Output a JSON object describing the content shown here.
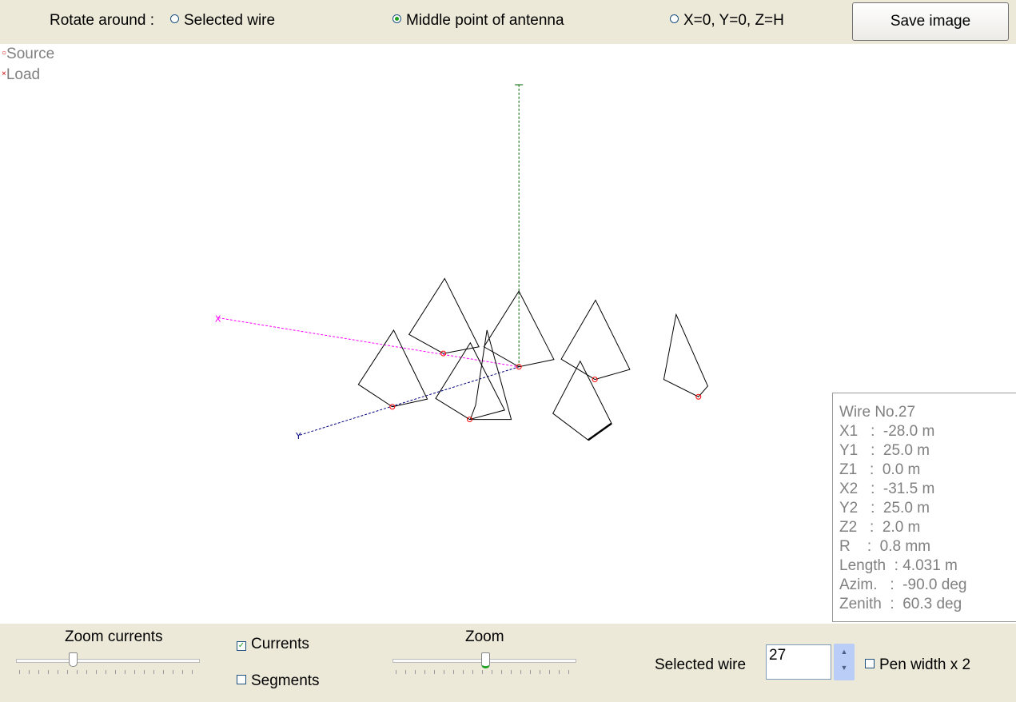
{
  "top": {
    "rotate_label": "Rotate around :",
    "options": [
      "Selected wire",
      "Middle point of antenna",
      "X=0, Y=0, Z=H"
    ],
    "selected_option": 1,
    "save_button": "Save image"
  },
  "legend": {
    "source_marker": "○",
    "source": "Source",
    "load_marker": "×",
    "load": "Load"
  },
  "axes": {
    "x": "X",
    "y": "Y",
    "colors": {
      "x": "#ff00ff",
      "y": "#000080",
      "z": "#006400",
      "wire": "#000000",
      "source": "#ff0000"
    }
  },
  "wire_info": {
    "title": "Wire No.27",
    "lines": [
      "X1   :  -28.0 m",
      "Y1   :  25.0 m",
      "Z1   :  0.0 m",
      "X2   :  -31.5 m",
      "Y2   :  25.0 m",
      "Z2   :  2.0 m",
      "R    :  0.8 mm",
      "Length  : 4.031 m",
      "Azim.   :  -90.0 deg",
      "Zenith  :  60.3 deg"
    ]
  },
  "bottom": {
    "zoom_currents_label": "Zoom currents",
    "zoom_currents_value": 0.3,
    "currents_label": "Currents",
    "currents_checked": true,
    "segments_label": "Segments",
    "segments_checked": false,
    "zoom_label": "Zoom",
    "zoom_value": 0.5,
    "selected_wire_label": "Selected wire",
    "selected_wire_value": "27",
    "pen_width_label": "Pen width x 2",
    "pen_width_checked": false
  }
}
